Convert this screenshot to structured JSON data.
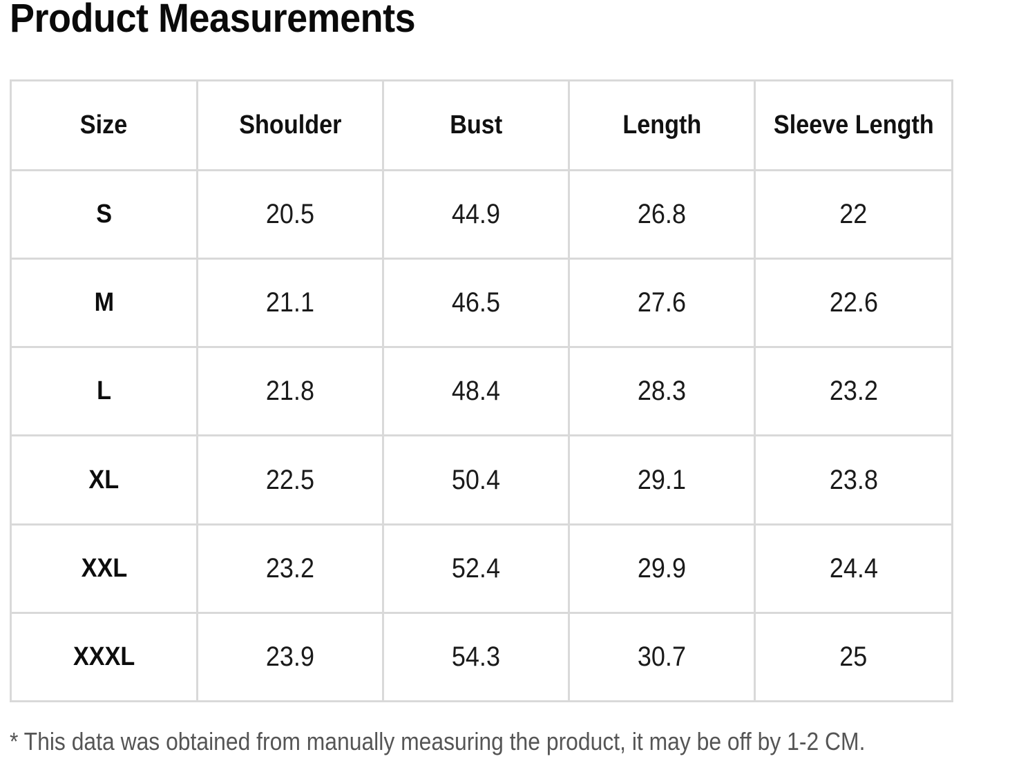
{
  "title": "Product Measurements",
  "table": {
    "headers": [
      "Size",
      "Shoulder",
      "Bust",
      "Length",
      "Sleeve Length"
    ],
    "rows": [
      [
        "S",
        "20.5",
        "44.9",
        "26.8",
        "22"
      ],
      [
        "M",
        "21.1",
        "46.5",
        "27.6",
        "22.6"
      ],
      [
        "L",
        "21.8",
        "48.4",
        "28.3",
        "23.2"
      ],
      [
        "XL",
        "22.5",
        "50.4",
        "29.1",
        "23.8"
      ],
      [
        "XXL",
        "23.2",
        "52.4",
        "29.9",
        "24.4"
      ],
      [
        "XXXL",
        "23.9",
        "54.3",
        "30.7",
        "25"
      ]
    ]
  },
  "footnote": "* This data was obtained from manually measuring the product, it may be off by 1-2 CM.",
  "colors": {
    "grid_line": "#d9d9d9",
    "text": "#111111",
    "footnote_text": "#555555",
    "background": "#ffffff"
  }
}
